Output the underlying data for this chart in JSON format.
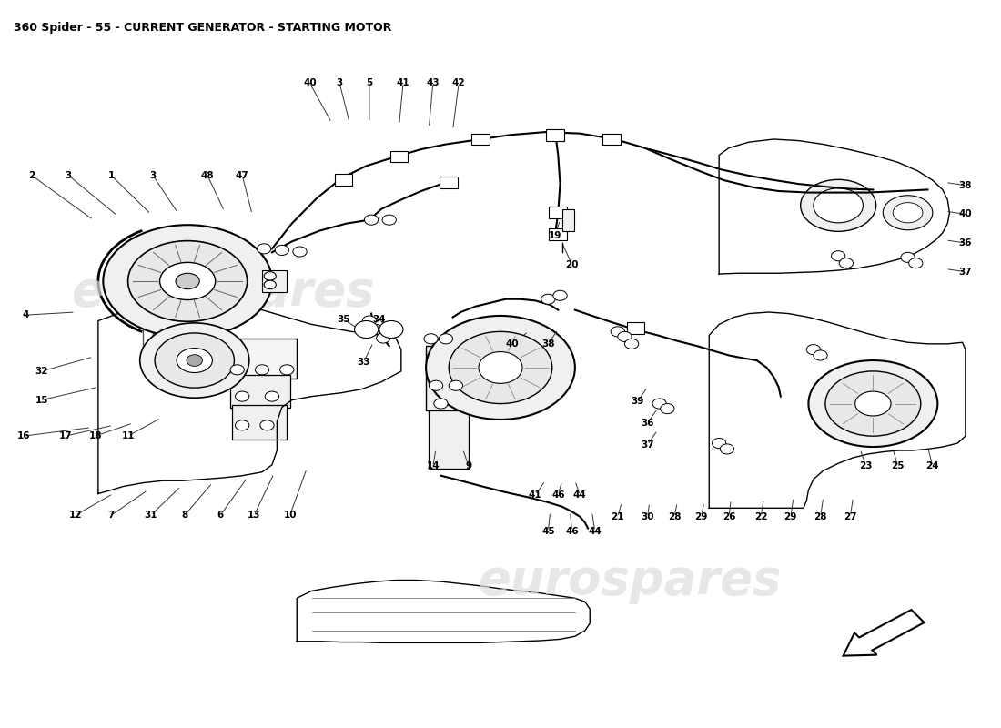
{
  "title": "360 Spider - 55 - CURRENT GENERATOR - STARTING MOTOR",
  "title_fontsize": 9,
  "bg_color": "#ffffff",
  "watermark_text": "eurospares",
  "watermark_color": "#dddddd",
  "watermark_fontsize": 38
}
